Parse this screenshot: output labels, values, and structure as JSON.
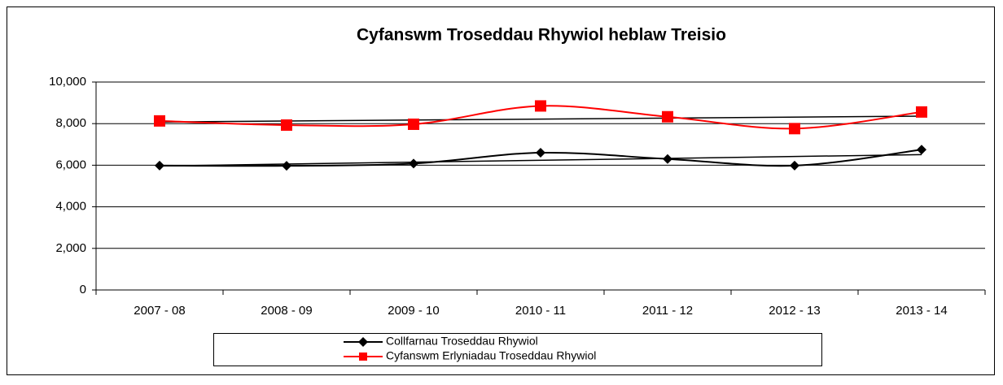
{
  "chart_data": {
    "type": "line",
    "title": "Cyfanswm Troseddau Rhywiol heblaw Treisio",
    "categories": [
      "2007 - 08",
      "2008 - 09",
      "2009 - 10",
      "2010 - 11",
      "2011 - 12",
      "2012 - 13",
      "2013 - 14"
    ],
    "series": [
      {
        "name": "Collfarnau Troseddau Rhywiol",
        "color": "#000000",
        "marker": "diamond",
        "values": [
          5980,
          5970,
          6080,
          6600,
          6300,
          5980,
          6750
        ]
      },
      {
        "name": "Cyfanswm Erlyniadau Troseddau Rhywiol",
        "color": "#ff0000",
        "marker": "square",
        "values": [
          8130,
          7930,
          7970,
          8850,
          8330,
          7760,
          8560
        ]
      }
    ],
    "ylim": [
      0,
      10000
    ],
    "yticks": [
      0,
      {
        "value": 2000,
        "label": "2,000"
      },
      {
        "value": 4000,
        "label": "4,000"
      },
      {
        "value": 6000,
        "label": "6,000"
      },
      {
        "value": 8000,
        "label": "8,000"
      },
      {
        "value": 10000,
        "label": "10,000"
      }
    ],
    "grid": true,
    "smooth": true,
    "trendline": true,
    "legend": "bottom"
  }
}
